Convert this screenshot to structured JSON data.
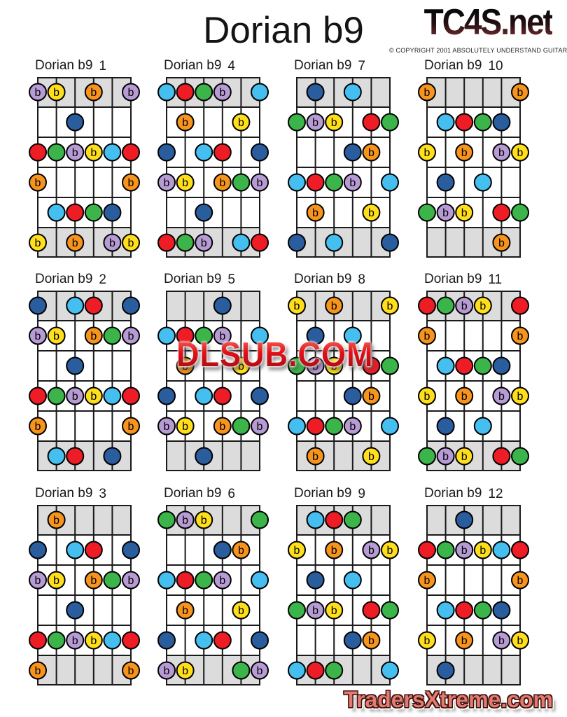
{
  "page": {
    "title": "Dorian b9",
    "logo": "TC4S.net",
    "copyright": "© COPYRIGHT 2001 ABSOLUTELY UNDERSTAND GUITAR",
    "watermark": "DLSUB.COM",
    "footer": "TradersXtreme.com"
  },
  "colors": {
    "red": "#ee1c25",
    "green": "#3bb54a",
    "blue": "#2a5d9e",
    "lightblue": "#44bff0",
    "orange": "#f7941e",
    "yellow": "#ffdf1b",
    "purple": "#b79bd4",
    "board_shade": "#dcdcdc",
    "line": "#1a1a1a",
    "dot_stroke": "#000000"
  },
  "board": {
    "strings": 6,
    "frets": 6,
    "shaded_rows": [
      0,
      5
    ]
  },
  "flat_colors": [
    "purple",
    "yellow",
    "orange"
  ],
  "flat_label": "b",
  "diagrams": [
    {
      "label": "Dorian b9",
      "number": "1",
      "col": 0,
      "row": 0,
      "dots": [
        [
          0,
          1,
          "purple"
        ],
        [
          0,
          2,
          "yellow"
        ],
        [
          0,
          4,
          "orange"
        ],
        [
          0,
          6,
          "purple"
        ],
        [
          1,
          3,
          "blue"
        ],
        [
          2,
          1,
          "red"
        ],
        [
          2,
          2,
          "green"
        ],
        [
          2,
          3,
          "purple"
        ],
        [
          2,
          4,
          "yellow"
        ],
        [
          2,
          5,
          "lightblue"
        ],
        [
          2,
          6,
          "red"
        ],
        [
          3,
          1,
          "orange"
        ],
        [
          3,
          6,
          "orange"
        ],
        [
          4,
          2,
          "lightblue"
        ],
        [
          4,
          3,
          "red"
        ],
        [
          4,
          4,
          "green"
        ],
        [
          4,
          5,
          "blue"
        ],
        [
          5,
          1,
          "yellow"
        ],
        [
          5,
          3,
          "orange"
        ],
        [
          5,
          5,
          "purple"
        ],
        [
          5,
          6,
          "yellow"
        ]
      ]
    },
    {
      "label": "Dorian b9",
      "number": "2",
      "col": 0,
      "row": 1,
      "dots": [
        [
          0,
          1,
          "blue"
        ],
        [
          0,
          3,
          "lightblue"
        ],
        [
          0,
          4,
          "red"
        ],
        [
          0,
          6,
          "blue"
        ],
        [
          1,
          1,
          "purple"
        ],
        [
          1,
          2,
          "yellow"
        ],
        [
          1,
          4,
          "orange"
        ],
        [
          1,
          5,
          "green"
        ],
        [
          1,
          6,
          "purple"
        ],
        [
          2,
          3,
          "blue"
        ],
        [
          3,
          1,
          "red"
        ],
        [
          3,
          2,
          "green"
        ],
        [
          3,
          3,
          "purple"
        ],
        [
          3,
          4,
          "yellow"
        ],
        [
          3,
          5,
          "lightblue"
        ],
        [
          3,
          6,
          "red"
        ],
        [
          4,
          1,
          "orange"
        ],
        [
          4,
          6,
          "orange"
        ],
        [
          5,
          2,
          "lightblue"
        ],
        [
          5,
          3,
          "red"
        ],
        [
          5,
          5,
          "blue"
        ]
      ]
    },
    {
      "label": "Dorian b9",
      "number": "3",
      "col": 0,
      "row": 2,
      "dots": [
        [
          0,
          2,
          "orange"
        ],
        [
          1,
          1,
          "blue"
        ],
        [
          1,
          3,
          "lightblue"
        ],
        [
          1,
          4,
          "red"
        ],
        [
          1,
          6,
          "blue"
        ],
        [
          2,
          1,
          "purple"
        ],
        [
          2,
          2,
          "yellow"
        ],
        [
          2,
          4,
          "orange"
        ],
        [
          2,
          5,
          "green"
        ],
        [
          2,
          6,
          "purple"
        ],
        [
          3,
          3,
          "blue"
        ],
        [
          4,
          1,
          "red"
        ],
        [
          4,
          2,
          "green"
        ],
        [
          4,
          3,
          "purple"
        ],
        [
          4,
          4,
          "yellow"
        ],
        [
          4,
          5,
          "lightblue"
        ],
        [
          4,
          6,
          "red"
        ],
        [
          5,
          1,
          "orange"
        ],
        [
          5,
          6,
          "orange"
        ]
      ]
    },
    {
      "label": "Dorian b9",
      "number": "4",
      "col": 1,
      "row": 0,
      "dots": [
        [
          0,
          1,
          "lightblue"
        ],
        [
          0,
          2,
          "red"
        ],
        [
          0,
          3,
          "green"
        ],
        [
          0,
          4,
          "purple"
        ],
        [
          0,
          6,
          "lightblue"
        ],
        [
          1,
          2,
          "orange"
        ],
        [
          1,
          5,
          "yellow"
        ],
        [
          2,
          1,
          "blue"
        ],
        [
          2,
          3,
          "lightblue"
        ],
        [
          2,
          4,
          "red"
        ],
        [
          2,
          6,
          "blue"
        ],
        [
          3,
          1,
          "purple"
        ],
        [
          3,
          2,
          "yellow"
        ],
        [
          3,
          4,
          "orange"
        ],
        [
          3,
          5,
          "green"
        ],
        [
          3,
          6,
          "purple"
        ],
        [
          4,
          3,
          "blue"
        ],
        [
          5,
          1,
          "red"
        ],
        [
          5,
          2,
          "green"
        ],
        [
          5,
          3,
          "purple"
        ],
        [
          5,
          5,
          "lightblue"
        ],
        [
          5,
          6,
          "red"
        ]
      ]
    },
    {
      "label": "Dorian b9",
      "number": "5",
      "col": 1,
      "row": 1,
      "dots": [
        [
          0,
          4,
          "blue"
        ],
        [
          1,
          1,
          "lightblue"
        ],
        [
          1,
          2,
          "red"
        ],
        [
          1,
          3,
          "green"
        ],
        [
          1,
          4,
          "purple"
        ],
        [
          1,
          6,
          "lightblue"
        ],
        [
          2,
          2,
          "orange"
        ],
        [
          2,
          5,
          "yellow"
        ],
        [
          3,
          1,
          "blue"
        ],
        [
          3,
          3,
          "lightblue"
        ],
        [
          3,
          4,
          "red"
        ],
        [
          3,
          6,
          "blue"
        ],
        [
          4,
          1,
          "purple"
        ],
        [
          4,
          2,
          "yellow"
        ],
        [
          4,
          4,
          "orange"
        ],
        [
          4,
          5,
          "green"
        ],
        [
          4,
          6,
          "purple"
        ],
        [
          5,
          3,
          "blue"
        ]
      ]
    },
    {
      "label": "Dorian b9",
      "number": "6",
      "col": 1,
      "row": 2,
      "dots": [
        [
          0,
          1,
          "green"
        ],
        [
          0,
          2,
          "purple"
        ],
        [
          0,
          3,
          "yellow"
        ],
        [
          0,
          6,
          "green"
        ],
        [
          1,
          4,
          "blue"
        ],
        [
          1,
          5,
          "orange"
        ],
        [
          2,
          1,
          "lightblue"
        ],
        [
          2,
          2,
          "red"
        ],
        [
          2,
          3,
          "green"
        ],
        [
          2,
          4,
          "purple"
        ],
        [
          2,
          6,
          "lightblue"
        ],
        [
          3,
          2,
          "orange"
        ],
        [
          3,
          5,
          "yellow"
        ],
        [
          4,
          1,
          "blue"
        ],
        [
          4,
          3,
          "lightblue"
        ],
        [
          4,
          4,
          "red"
        ],
        [
          4,
          6,
          "blue"
        ],
        [
          5,
          1,
          "purple"
        ],
        [
          5,
          2,
          "yellow"
        ],
        [
          5,
          5,
          "green"
        ],
        [
          5,
          6,
          "purple"
        ]
      ]
    },
    {
      "label": "Dorian b9",
      "number": "7",
      "col": 2,
      "row": 0,
      "dots": [
        [
          0,
          2,
          "blue"
        ],
        [
          0,
          4,
          "lightblue"
        ],
        [
          1,
          1,
          "green"
        ],
        [
          1,
          2,
          "purple"
        ],
        [
          1,
          3,
          "yellow"
        ],
        [
          1,
          5,
          "red"
        ],
        [
          1,
          6,
          "green"
        ],
        [
          2,
          4,
          "blue"
        ],
        [
          2,
          5,
          "orange"
        ],
        [
          3,
          1,
          "lightblue"
        ],
        [
          3,
          2,
          "red"
        ],
        [
          3,
          3,
          "green"
        ],
        [
          3,
          4,
          "purple"
        ],
        [
          3,
          6,
          "lightblue"
        ],
        [
          4,
          2,
          "orange"
        ],
        [
          4,
          5,
          "yellow"
        ],
        [
          5,
          1,
          "blue"
        ],
        [
          5,
          3,
          "lightblue"
        ],
        [
          5,
          6,
          "blue"
        ]
      ]
    },
    {
      "label": "Dorian b9",
      "number": "8",
      "col": 2,
      "row": 1,
      "dots": [
        [
          0,
          1,
          "yellow"
        ],
        [
          0,
          3,
          "orange"
        ],
        [
          0,
          6,
          "yellow"
        ],
        [
          1,
          2,
          "blue"
        ],
        [
          1,
          4,
          "lightblue"
        ],
        [
          2,
          1,
          "green"
        ],
        [
          2,
          2,
          "purple"
        ],
        [
          2,
          3,
          "yellow"
        ],
        [
          2,
          5,
          "red"
        ],
        [
          2,
          6,
          "green"
        ],
        [
          3,
          4,
          "blue"
        ],
        [
          3,
          5,
          "orange"
        ],
        [
          4,
          1,
          "lightblue"
        ],
        [
          4,
          2,
          "red"
        ],
        [
          4,
          3,
          "green"
        ],
        [
          4,
          4,
          "purple"
        ],
        [
          4,
          6,
          "lightblue"
        ],
        [
          5,
          2,
          "orange"
        ],
        [
          5,
          5,
          "yellow"
        ]
      ]
    },
    {
      "label": "Dorian b9",
      "number": "9",
      "col": 2,
      "row": 2,
      "dots": [
        [
          0,
          2,
          "lightblue"
        ],
        [
          0,
          3,
          "red"
        ],
        [
          0,
          4,
          "green"
        ],
        [
          1,
          1,
          "yellow"
        ],
        [
          1,
          3,
          "orange"
        ],
        [
          1,
          5,
          "purple"
        ],
        [
          1,
          6,
          "yellow"
        ],
        [
          2,
          2,
          "blue"
        ],
        [
          2,
          4,
          "lightblue"
        ],
        [
          3,
          1,
          "green"
        ],
        [
          3,
          2,
          "purple"
        ],
        [
          3,
          3,
          "yellow"
        ],
        [
          3,
          5,
          "red"
        ],
        [
          3,
          6,
          "green"
        ],
        [
          4,
          4,
          "blue"
        ],
        [
          4,
          5,
          "orange"
        ],
        [
          5,
          1,
          "lightblue"
        ],
        [
          5,
          2,
          "red"
        ],
        [
          5,
          3,
          "green"
        ],
        [
          5,
          6,
          "lightblue"
        ]
      ]
    },
    {
      "label": "Dorian b9",
      "number": "10",
      "col": 3,
      "row": 0,
      "dots": [
        [
          0,
          1,
          "orange"
        ],
        [
          0,
          6,
          "orange"
        ],
        [
          1,
          2,
          "lightblue"
        ],
        [
          1,
          3,
          "red"
        ],
        [
          1,
          4,
          "green"
        ],
        [
          1,
          5,
          "blue"
        ],
        [
          2,
          1,
          "yellow"
        ],
        [
          2,
          3,
          "orange"
        ],
        [
          2,
          5,
          "purple"
        ],
        [
          2,
          6,
          "yellow"
        ],
        [
          3,
          2,
          "blue"
        ],
        [
          3,
          4,
          "lightblue"
        ],
        [
          4,
          1,
          "green"
        ],
        [
          4,
          2,
          "purple"
        ],
        [
          4,
          3,
          "yellow"
        ],
        [
          4,
          5,
          "red"
        ],
        [
          4,
          6,
          "green"
        ],
        [
          5,
          5,
          "orange"
        ]
      ]
    },
    {
      "label": "Dorian b9",
      "number": "11",
      "col": 3,
      "row": 1,
      "dots": [
        [
          0,
          1,
          "red"
        ],
        [
          0,
          2,
          "green"
        ],
        [
          0,
          3,
          "purple"
        ],
        [
          0,
          4,
          "yellow"
        ],
        [
          0,
          6,
          "red"
        ],
        [
          1,
          1,
          "orange"
        ],
        [
          1,
          6,
          "orange"
        ],
        [
          2,
          2,
          "lightblue"
        ],
        [
          2,
          3,
          "red"
        ],
        [
          2,
          4,
          "green"
        ],
        [
          2,
          5,
          "blue"
        ],
        [
          3,
          1,
          "yellow"
        ],
        [
          3,
          3,
          "orange"
        ],
        [
          3,
          5,
          "purple"
        ],
        [
          3,
          6,
          "yellow"
        ],
        [
          4,
          2,
          "blue"
        ],
        [
          4,
          4,
          "lightblue"
        ],
        [
          5,
          1,
          "green"
        ],
        [
          5,
          2,
          "purple"
        ],
        [
          5,
          3,
          "yellow"
        ],
        [
          5,
          5,
          "red"
        ],
        [
          5,
          6,
          "green"
        ]
      ]
    },
    {
      "label": "Dorian b9",
      "number": "12",
      "col": 3,
      "row": 2,
      "dots": [
        [
          0,
          3,
          "blue"
        ],
        [
          1,
          1,
          "red"
        ],
        [
          1,
          2,
          "green"
        ],
        [
          1,
          3,
          "purple"
        ],
        [
          1,
          4,
          "yellow"
        ],
        [
          1,
          5,
          "lightblue"
        ],
        [
          1,
          6,
          "red"
        ],
        [
          2,
          1,
          "orange"
        ],
        [
          2,
          6,
          "orange"
        ],
        [
          3,
          2,
          "lightblue"
        ],
        [
          3,
          3,
          "red"
        ],
        [
          3,
          4,
          "green"
        ],
        [
          3,
          5,
          "blue"
        ],
        [
          4,
          1,
          "yellow"
        ],
        [
          4,
          3,
          "orange"
        ],
        [
          4,
          5,
          "purple"
        ],
        [
          4,
          6,
          "yellow"
        ],
        [
          5,
          2,
          "blue"
        ]
      ]
    }
  ]
}
